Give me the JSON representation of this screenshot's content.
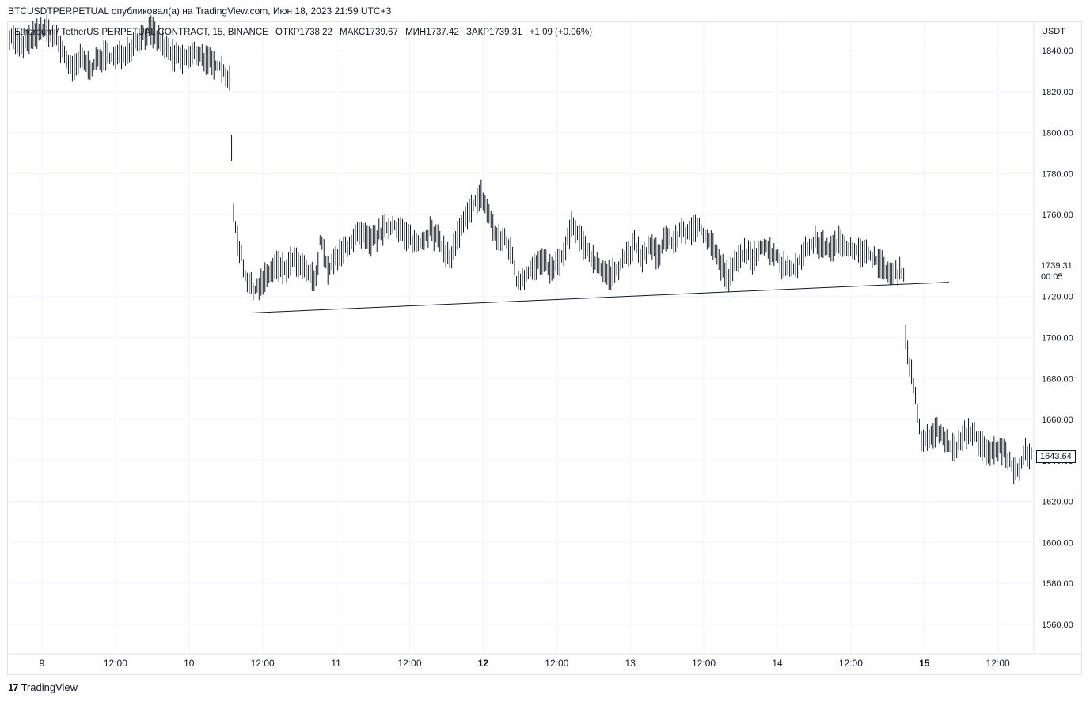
{
  "header": {
    "caption": "BTCUSDTPERPETUAL опубликовал(а) на TradingView.com, Июн 18, 2023 21:59 UTC+3"
  },
  "legend": {
    "symbol": "Ethereum / TetherUS PERPETUAL CONTRACT, 15, BINANCE",
    "open": "ОТКР1738.22",
    "high": "МАКС1739.67",
    "low": "МИН1737.42",
    "close": "ЗАКР1739.31",
    "change": "+1.09 (+0.06%)"
  },
  "currency": "USDT",
  "last_price": {
    "value": "1739.31",
    "countdown": "00:05"
  },
  "current_price_label": "1643.64",
  "footer": {
    "brand": "TradingView",
    "brand_mark": "17"
  },
  "colors": {
    "bars": "#131722",
    "grid": "#f0f3fa",
    "text": "#131722",
    "border": "#e0e3eb"
  },
  "chart_data": {
    "type": "ohlc",
    "y_ticks": [
      1840,
      1820,
      1800,
      1780,
      1760,
      1739.31,
      1720,
      1700,
      1680,
      1660,
      1640,
      1620,
      1600,
      1580,
      1560
    ],
    "y_tick_labels": [
      "1840.00",
      "1820.00",
      "1800.00",
      "1780.00",
      "1760.00",
      "1739.31",
      "1720.00",
      "1700.00",
      "1680.00",
      "1660.00",
      "1640.00",
      "1620.00",
      "1600.00",
      "1580.00",
      "1560.00"
    ],
    "ylim": [
      1546,
      1854
    ],
    "x_ticks": [
      {
        "label": "9",
        "bold": false
      },
      {
        "label": "12:00",
        "bold": false
      },
      {
        "label": "10",
        "bold": false
      },
      {
        "label": "12:00",
        "bold": false
      },
      {
        "label": "11",
        "bold": false
      },
      {
        "label": "12:00",
        "bold": false
      },
      {
        "label": "12",
        "bold": true
      },
      {
        "label": "12:00",
        "bold": false
      },
      {
        "label": "13",
        "bold": false
      },
      {
        "label": "12:00",
        "bold": false
      },
      {
        "label": "14",
        "bold": false
      },
      {
        "label": "12:00",
        "bold": false
      },
      {
        "label": "15",
        "bold": true
      },
      {
        "label": "12:00",
        "bold": false
      }
    ],
    "series_path": [
      [
        0,
        1848
      ],
      [
        3,
        1842
      ],
      [
        6,
        1847
      ],
      [
        9,
        1851
      ],
      [
        12,
        1845
      ],
      [
        14,
        1838
      ],
      [
        16,
        1830
      ],
      [
        18,
        1836
      ],
      [
        21,
        1832
      ],
      [
        24,
        1838
      ],
      [
        27,
        1836
      ],
      [
        30,
        1841
      ],
      [
        33,
        1846
      ],
      [
        36,
        1850
      ],
      [
        39,
        1843
      ],
      [
        42,
        1837
      ],
      [
        45,
        1836
      ],
      [
        48,
        1839
      ],
      [
        51,
        1834
      ],
      [
        54,
        1832
      ],
      [
        56,
        1825
      ],
      [
        57,
        1761
      ],
      [
        58,
        1748
      ],
      [
        59,
        1740
      ],
      [
        60,
        1730
      ],
      [
        62,
        1722
      ],
      [
        64,
        1727
      ],
      [
        66,
        1731
      ],
      [
        68,
        1736
      ],
      [
        70,
        1733
      ],
      [
        72,
        1738
      ],
      [
        74,
        1735
      ],
      [
        76,
        1731
      ],
      [
        78,
        1728
      ],
      [
        79,
        1748
      ],
      [
        80,
        1742
      ],
      [
        81,
        1732
      ],
      [
        83,
        1738
      ],
      [
        86,
        1745
      ],
      [
        89,
        1750
      ],
      [
        92,
        1747
      ],
      [
        95,
        1752
      ],
      [
        98,
        1755
      ],
      [
        101,
        1750
      ],
      [
        104,
        1745
      ],
      [
        107,
        1752
      ],
      [
        110,
        1745
      ],
      [
        112,
        1738
      ],
      [
        114,
        1750
      ],
      [
        116,
        1757
      ],
      [
        118,
        1765
      ],
      [
        120,
        1770
      ],
      [
        122,
        1760
      ],
      [
        124,
        1748
      ],
      [
        126,
        1748
      ],
      [
        128,
        1740
      ],
      [
        129,
        1727
      ],
      [
        132,
        1732
      ],
      [
        135,
        1737
      ],
      [
        138,
        1733
      ],
      [
        141,
        1740
      ],
      [
        143,
        1755
      ],
      [
        145,
        1748
      ],
      [
        147,
        1743
      ],
      [
        149,
        1737
      ],
      [
        151,
        1733
      ],
      [
        153,
        1730
      ],
      [
        155,
        1735
      ],
      [
        157,
        1740
      ],
      [
        159,
        1745
      ],
      [
        161,
        1738
      ],
      [
        163,
        1745
      ],
      [
        165,
        1740
      ],
      [
        167,
        1750
      ],
      [
        169,
        1745
      ],
      [
        171,
        1753
      ],
      [
        173,
        1750
      ],
      [
        175,
        1755
      ],
      [
        177,
        1750
      ],
      [
        179,
        1745
      ],
      [
        181,
        1735
      ],
      [
        183,
        1730
      ],
      [
        185,
        1737
      ],
      [
        187,
        1742
      ],
      [
        189,
        1738
      ],
      [
        191,
        1745
      ],
      [
        193,
        1743
      ],
      [
        195,
        1740
      ],
      [
        197,
        1735
      ],
      [
        199,
        1733
      ],
      [
        201,
        1738
      ],
      [
        203,
        1743
      ],
      [
        205,
        1747
      ],
      [
        207,
        1745
      ],
      [
        209,
        1743
      ],
      [
        211,
        1747
      ],
      [
        213,
        1745
      ],
      [
        215,
        1743
      ],
      [
        217,
        1741
      ],
      [
        219,
        1740
      ],
      [
        221,
        1737
      ],
      [
        223,
        1733
      ],
      [
        225,
        1730
      ],
      [
        227,
        1732
      ]
    ],
    "series_x_range": [
      0,
      260
    ],
    "trendline": {
      "x": [
        0,
        1
      ],
      "y": [
        1712,
        1727
      ]
    }
  }
}
